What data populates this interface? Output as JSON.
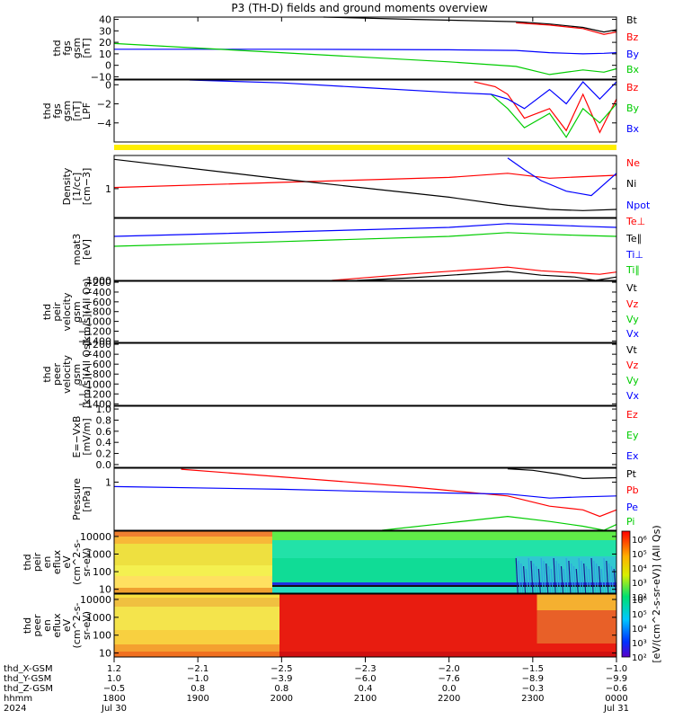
{
  "title": "P3 (TH-D) fields and ground moments overview",
  "chart_data": [
    {
      "type": "line",
      "ylabel": [
        "thd",
        "fgs",
        "gsm",
        "[nT]"
      ],
      "ylim": [
        -12,
        42
      ],
      "ticks": [
        -10,
        0,
        10,
        20,
        30,
        40
      ],
      "tick_labels": [
        "−10",
        "0",
        "10",
        "20",
        "30",
        "40"
      ],
      "series": [
        {
          "name": "Bt",
          "color": "#000000",
          "x": [
            20.5,
            21.6,
            22.8,
            23.2,
            23.6,
            23.85,
            24.0
          ],
          "y": [
            42,
            40,
            38,
            36,
            33,
            29,
            31
          ]
        },
        {
          "name": "Bz",
          "color": "#ff0000",
          "x": [
            22.8,
            23.2,
            23.6,
            23.85,
            24.0
          ],
          "y": [
            37,
            35,
            32,
            27,
            29
          ]
        },
        {
          "name": "By",
          "color": "#0000ff",
          "x": [
            18.0,
            20.0,
            22.0,
            22.8,
            23.2,
            23.6,
            23.85,
            24.0
          ],
          "y": [
            14,
            14,
            13.5,
            13,
            11,
            10,
            10.5,
            11
          ]
        },
        {
          "name": "Bx",
          "color": "#00cc00",
          "x": [
            18.0,
            19.0,
            20.0,
            21.0,
            22.0,
            22.8,
            23.2,
            23.6,
            23.85,
            24.0
          ],
          "y": [
            19,
            15,
            11,
            7,
            3,
            -1,
            -8,
            -4,
            -6,
            -3
          ]
        }
      ]
    },
    {
      "type": "line",
      "ylabel": [
        "thd",
        "fgs",
        "gsm",
        "[nT]",
        "LPF"
      ],
      "ylim": [
        -6,
        0.5
      ],
      "ticks": [
        -4,
        -2,
        0
      ],
      "tick_labels": [
        "−4",
        "−2",
        "0"
      ],
      "series": [
        {
          "name": "Bz",
          "color": "#ff0000",
          "x": [
            22.3,
            22.55,
            22.7,
            22.9,
            23.2,
            23.4,
            23.6,
            23.8,
            24.0
          ],
          "y": [
            0.3,
            -0.2,
            -1.0,
            -3.5,
            -2.5,
            -4.8,
            -1.0,
            -5.0,
            -1.5
          ]
        },
        {
          "name": "By",
          "color": "#00cc00",
          "x": [
            22.5,
            22.7,
            22.9,
            23.2,
            23.4,
            23.6,
            23.8,
            24.0
          ],
          "y": [
            -1.0,
            -2.5,
            -4.5,
            -3.0,
            -5.5,
            -2.5,
            -4.0,
            -2.0
          ]
        },
        {
          "name": "Bx",
          "color": "#0000ff",
          "x": [
            18.9,
            20.0,
            21.0,
            22.0,
            22.5,
            22.7,
            22.9,
            23.2,
            23.4,
            23.6,
            23.8,
            24.0
          ],
          "y": [
            0.5,
            0.2,
            -0.3,
            -0.8,
            -1.0,
            -1.5,
            -2.5,
            -0.5,
            -2.0,
            0.3,
            -1.5,
            0.3
          ]
        }
      ]
    },
    {
      "type": "line",
      "ylabel": [
        "Density",
        "[1/cc]",
        "[cm−3]"
      ],
      "yscale": "log",
      "ylim": [
        0.3,
        4
      ],
      "ticks": [
        1
      ],
      "tick_labels": [
        "1"
      ],
      "series": [
        {
          "name": "Ne",
          "color": "#ff0000",
          "x": [
            18.0,
            20.0,
            22.0,
            22.7,
            23.2,
            23.6,
            24.0
          ],
          "y": [
            1.05,
            1.3,
            1.6,
            1.9,
            1.55,
            1.65,
            1.75
          ]
        },
        {
          "name": "Ni",
          "color": "#000000",
          "x": [
            18.0,
            20.0,
            22.0,
            22.7,
            23.2,
            23.6,
            24.0
          ],
          "y": [
            3.4,
            1.5,
            0.7,
            0.5,
            0.42,
            0.4,
            0.42
          ]
        },
        {
          "name": "Npot",
          "color": "#0000ff",
          "x": [
            22.7,
            22.9,
            23.1,
            23.4,
            23.7,
            24.0
          ],
          "y": [
            3.6,
            2.2,
            1.4,
            0.9,
            0.75,
            1.9
          ]
        }
      ]
    },
    {
      "type": "line",
      "ylabel": [
        "moat3",
        "[eV]"
      ],
      "yscale": "log",
      "ylim": [
        1000,
        120000
      ],
      "ticks": [
        1000
      ],
      "tick_labels": [
        "1000"
      ],
      "series": [
        {
          "name": "Te⊥",
          "color": "#ff0000",
          "x": [
            20.6,
            21.5,
            22.7,
            23.1,
            23.5,
            23.8,
            24.0
          ],
          "y": [
            1000,
            1600,
            2800,
            2100,
            1800,
            1600,
            1900
          ]
        },
        {
          "name": "Te∥",
          "color": "#000000",
          "x": [
            20.9,
            21.5,
            22.7,
            23.1,
            23.5,
            23.75,
            24.0
          ],
          "y": [
            1000,
            1200,
            2000,
            1500,
            1300,
            1000,
            1300
          ]
        },
        {
          "name": "Ti⊥",
          "color": "#0000ff",
          "x": [
            18.0,
            20.0,
            22.0,
            22.7,
            23.2,
            23.6,
            24.0
          ],
          "y": [
            30000,
            42000,
            60000,
            80000,
            72000,
            65000,
            60000
          ]
        },
        {
          "name": "Ti∥",
          "color": "#00cc00",
          "x": [
            18.0,
            20.0,
            22.0,
            22.7,
            23.2,
            23.6,
            24.0
          ],
          "y": [
            14000,
            20000,
            30000,
            40000,
            35000,
            32000,
            30000
          ]
        }
      ]
    },
    {
      "type": "line",
      "ylabel": [
        "thd",
        "peir",
        "velocity",
        "gsm",
        "[km/s](All Qs)"
      ],
      "ylim": [
        -1430,
        -180
      ],
      "ticks": [
        -200,
        -400,
        -600,
        -800,
        -1000,
        -1200,
        -1400
      ],
      "tick_labels": [
        "−200",
        "−400",
        "−600",
        "−800",
        "−1000",
        "−1200",
        "−1400"
      ],
      "series": [
        {
          "name": "Vt",
          "color": "#000000"
        },
        {
          "name": "Vz",
          "color": "#ff0000"
        },
        {
          "name": "Vy",
          "color": "#00cc00"
        },
        {
          "name": "Vx",
          "color": "#0000ff"
        }
      ]
    },
    {
      "type": "line",
      "ylabel": [
        "thd",
        "peer",
        "velocity",
        "gsm",
        "[km/s](All Qs)"
      ],
      "ylim": [
        -1430,
        -180
      ],
      "ticks": [
        -200,
        -400,
        -600,
        -800,
        -1000,
        -1200,
        -1400
      ],
      "tick_labels": [
        "−200",
        "−400",
        "−600",
        "−800",
        "−1000",
        "−1200",
        "−1400"
      ],
      "series": [
        {
          "name": "Vt",
          "color": "#000000"
        },
        {
          "name": "Vz",
          "color": "#ff0000"
        },
        {
          "name": "Vy",
          "color": "#00cc00"
        },
        {
          "name": "Vx",
          "color": "#0000ff"
        }
      ]
    },
    {
      "type": "line",
      "ylabel": [
        "E=−VxB",
        "[mV/m]"
      ],
      "ylim": [
        -0.05,
        1.05
      ],
      "ticks": [
        0.0,
        0.2,
        0.4,
        0.6,
        0.8,
        1.0
      ],
      "tick_labels": [
        "0.0",
        "0.2",
        "0.4",
        "0.6",
        "0.8",
        "1.0"
      ],
      "series": [
        {
          "name": "Ez",
          "color": "#ff0000"
        },
        {
          "name": "Ey",
          "color": "#00cc00"
        },
        {
          "name": "Ex",
          "color": "#0000ff"
        }
      ]
    },
    {
      "type": "line",
      "ylabel": [
        "Pressure",
        "[nPa]"
      ],
      "yscale": "log",
      "ylim": [
        0.09,
        2
      ],
      "ticks": [
        1
      ],
      "tick_labels": [
        "1"
      ],
      "series": [
        {
          "name": "Pt",
          "color": "#000000",
          "x": [
            22.7,
            23.0,
            23.3,
            23.6,
            24.0
          ],
          "y": [
            1.95,
            1.8,
            1.5,
            1.2,
            1.25
          ]
        },
        {
          "name": "Pb",
          "color": "#ff0000",
          "x": [
            18.8,
            20.0,
            21.5,
            22.7,
            23.2,
            23.6,
            23.8,
            24.0
          ],
          "y": [
            1.9,
            1.3,
            0.8,
            0.5,
            0.3,
            0.25,
            0.18,
            0.25
          ]
        },
        {
          "name": "Pe",
          "color": "#0000ff",
          "x": [
            18.0,
            20.0,
            21.5,
            22.7,
            23.2,
            23.6,
            24.0
          ],
          "y": [
            0.8,
            0.7,
            0.6,
            0.55,
            0.45,
            0.48,
            0.5
          ]
        },
        {
          "name": "Pi",
          "color": "#00cc00",
          "x": [
            21.2,
            22.0,
            22.7,
            23.2,
            23.6,
            23.85,
            24.0
          ],
          "y": [
            0.09,
            0.13,
            0.18,
            0.14,
            0.11,
            0.09,
            0.12
          ]
        }
      ]
    },
    {
      "type": "heatmap",
      "ylabel": [
        "thd",
        "peir",
        "en",
        "eflux",
        "eV",
        "(cm^2-s-",
        "sr-eV)"
      ],
      "yscale": "log",
      "ylim": [
        6,
        20000
      ],
      "ticks": [
        10,
        100,
        1000,
        10000
      ],
      "tick_labels": [
        "10",
        "100",
        "1000",
        "10000"
      ]
    },
    {
      "type": "heatmap",
      "ylabel": [
        "thd",
        "peer",
        "en",
        "eflux",
        "eV",
        "(cm^2-s-",
        "sr-eV)"
      ],
      "yscale": "log",
      "ylim": [
        6,
        20000
      ],
      "ticks": [
        10,
        100,
        1000,
        10000
      ],
      "tick_labels": [
        "10",
        "100",
        "1000",
        "10000"
      ]
    }
  ],
  "colorbar": {
    "label": "[eV/(cm^2-s-sr-eV)] (All Qs)",
    "ticks_upper": [
      "10⁶",
      "10⁵",
      "10⁴",
      "10³",
      "10²"
    ],
    "ticks_lower": [
      "10⁶",
      "10⁵",
      "10⁴",
      "10³",
      "10²"
    ]
  },
  "time_axis": {
    "xlim": [
      18.0,
      24.0
    ],
    "rows": [
      {
        "label": "thd_X-GSM",
        "values": [
          "1.2",
          "−2.1",
          "−2.5",
          "−2.3",
          "−2.0",
          "−1.5",
          "−1.0"
        ]
      },
      {
        "label": "thd_Y-GSM",
        "values": [
          "1.0",
          "−1.0",
          "−3.9",
          "−6.0",
          "−7.6",
          "−8.9",
          "−9.9"
        ]
      },
      {
        "label": "thd_Z-GSM",
        "values": [
          "−0.5",
          "0.8",
          "0.8",
          "0.4",
          "0.0",
          "−0.3",
          "−0.6"
        ]
      },
      {
        "label": "hhmm",
        "values": [
          "1800",
          "1900",
          "2000",
          "2100",
          "2200",
          "2300",
          "0000"
        ]
      },
      {
        "label": "2024",
        "values": [
          "Jul 30",
          "",
          "",
          "",
          "",
          "",
          "Jul 31"
        ]
      }
    ]
  }
}
